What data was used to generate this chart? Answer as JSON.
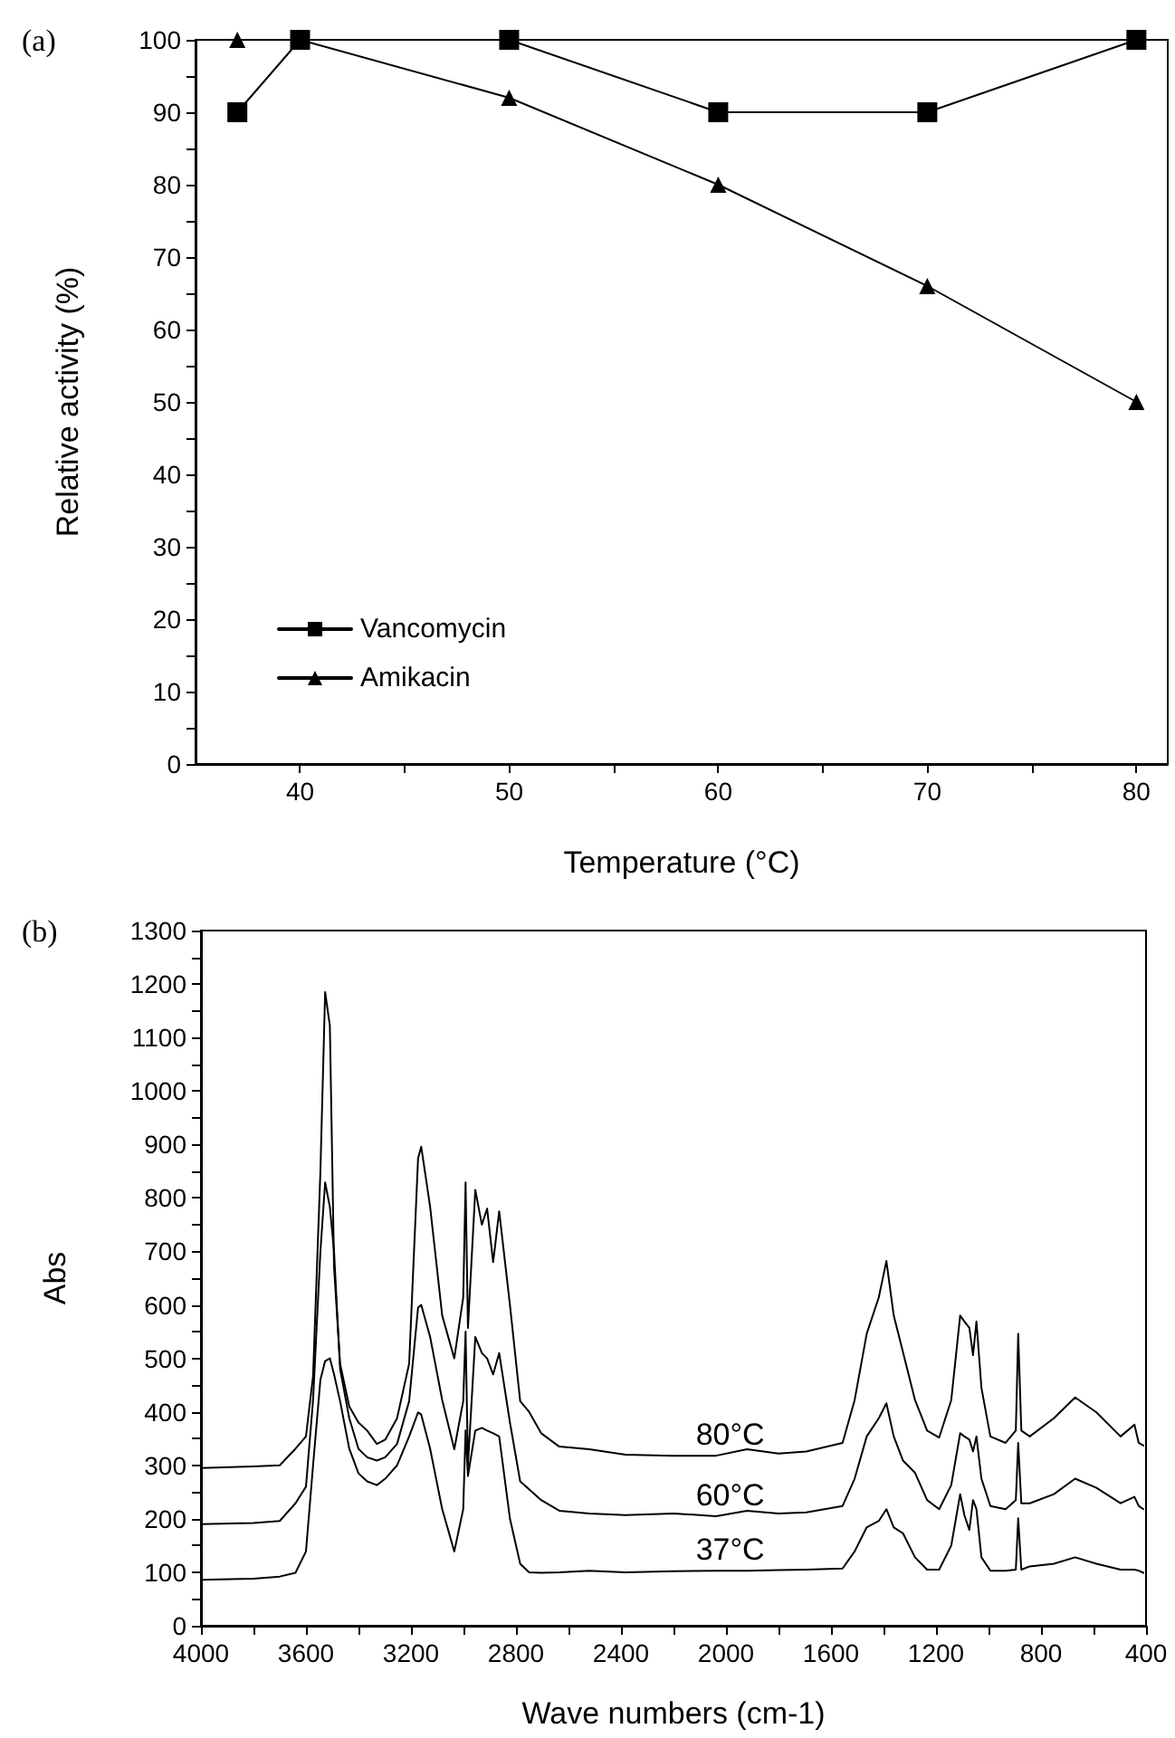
{
  "chart_data": [
    {
      "type": "line",
      "xlabel": "Temperature (°C)",
      "ylabel": "Relative activity (%)",
      "annotations": [
        "(a)"
      ],
      "x": [
        37,
        40,
        50,
        60,
        70,
        80
      ],
      "series": [
        {
          "name": "Vancomycin",
          "color": "#000000",
          "marker": "square",
          "values": [
            90,
            100,
            100,
            90,
            90,
            100
          ]
        },
        {
          "name": "Amikacin",
          "color": "#000000",
          "marker": "triangle",
          "values": [
            100,
            100,
            92,
            80,
            66,
            50
          ]
        }
      ],
      "xlim": [
        35,
        81.5
      ],
      "xticks": [
        40,
        {
          "value": 45,
          "label": null
        },
        50,
        {
          "value": 55,
          "label": null
        },
        60,
        {
          "value": 65,
          "label": null
        },
        70,
        {
          "value": 75,
          "label": null
        },
        80
      ],
      "ylim": [
        0,
        100
      ],
      "yticks": [
        0,
        {
          "value": 5,
          "label": null
        },
        10,
        {
          "value": 15,
          "label": null
        },
        20,
        {
          "value": 25,
          "label": null
        },
        30,
        {
          "value": 35,
          "label": null
        },
        40,
        {
          "value": 45,
          "label": null
        },
        50,
        {
          "value": 55,
          "label": null
        },
        60,
        {
          "value": 65,
          "label": null
        },
        70,
        {
          "value": 75,
          "label": null
        },
        80,
        {
          "value": 85,
          "label": null
        },
        90,
        {
          "value": 95,
          "label": null
        },
        100
      ],
      "legend": "bottom left",
      "line_style": "solid"
    },
    {
      "type": "line",
      "xlabel": "Wave numbers (cm-1)",
      "ylabel": "Abs",
      "marker": "none",
      "line_style": "solid",
      "annotations": [
        "(b)"
      ],
      "x": [
        4000,
        3800,
        3700,
        3640,
        3600,
        3573,
        3545,
        3527,
        3509,
        3493,
        3470,
        3435,
        3400,
        3367,
        3330,
        3298,
        3253,
        3207,
        3173,
        3161,
        3127,
        3081,
        3035,
        3001,
        2992,
        2983,
        2955,
        2930,
        2910,
        2887,
        2864,
        2823,
        2784,
        2750,
        2704,
        2635,
        2521,
        2383,
        2200,
        2038,
        1920,
        1800,
        1694,
        1556,
        1510,
        1464,
        1418,
        1389,
        1361,
        1326,
        1280,
        1234,
        1188,
        1142,
        1108,
        1092,
        1073,
        1059,
        1046,
        1027,
        993,
        935,
        896,
        887,
        875,
        843,
        751,
        670,
        589,
        497,
        444,
        428,
        410
      ],
      "series": [
        {
          "name": "80°C",
          "color": "#000000",
          "values": [
            295,
            298,
            300,
            331,
            354,
            467,
            850,
            1185,
            1122,
            670,
            490,
            410,
            380,
            365,
            340,
            348,
            388,
            490,
            874,
            896,
            783,
            580,
            500,
            614,
            829,
            557,
            815,
            750,
            780,
            680,
            775,
            600,
            420,
            400,
            360,
            335,
            330,
            320,
            318,
            318,
            330,
            322,
            326,
            342,
            422,
            546,
            614,
            682,
            580,
            512,
            422,
            365,
            352,
            422,
            580,
            569,
            557,
            506,
            569,
            445,
            354,
            342,
            365,
            546,
            365,
            354,
            388,
            427,
            399,
            354,
            376,
            342,
            337
          ]
        },
        {
          "name": "60°C",
          "color": "#000000",
          "values": [
            190,
            192,
            196,
            229,
            260,
            422,
            700,
            829,
            783,
            700,
            480,
            388,
            331,
            315,
            309,
            315,
            340,
            420,
            595,
            600,
            540,
            422,
            330,
            420,
            550,
            300,
            540,
            510,
            500,
            470,
            510,
            380,
            270,
            255,
            235,
            215,
            210,
            207,
            210,
            205,
            215,
            210,
            212,
            224,
            275,
            354,
            388,
            416,
            354,
            309,
            286,
            235,
            218,
            263,
            360,
            354,
            348,
            326,
            354,
            275,
            224,
            218,
            235,
            342,
            229,
            229,
            246,
            275,
            258,
            229,
            241,
            224,
            218
          ]
        },
        {
          "name": "37°C",
          "color": "#000000",
          "values": [
            86,
            88,
            92,
            99,
            139,
            300,
            460,
            495,
            500,
            470,
            420,
            331,
            285,
            270,
            263,
            275,
            300,
            354,
            399,
            395,
            331,
            218,
            139,
            218,
            365,
            280,
            365,
            370,
            365,
            360,
            354,
            200,
            116,
            100,
            99,
            100,
            103,
            100,
            102,
            103,
            103,
            104,
            105,
            107,
            139,
            184,
            196,
            218,
            184,
            173,
            128,
            105,
            105,
            150,
            246,
            207,
            179,
            235,
            218,
            128,
            103,
            103,
            105,
            201,
            105,
            111,
            116,
            128,
            116,
            105,
            105,
            103,
            99
          ]
        }
      ],
      "xlim": [
        4000,
        400
      ],
      "xticks": [
        4000,
        {
          "value": 3800,
          "label": null
        },
        3600,
        {
          "value": 3400,
          "label": null
        },
        3200,
        {
          "value": 3000,
          "label": null
        },
        2800,
        {
          "value": 2600,
          "label": null
        },
        2400,
        {
          "value": 2200,
          "label": null
        },
        2000,
        {
          "value": 1800,
          "label": null
        },
        1600,
        {
          "value": 1400,
          "label": null
        },
        1200,
        {
          "value": 1000,
          "label": null
        },
        800,
        {
          "value": 600,
          "label": null
        },
        400
      ],
      "ylim": [
        0,
        1300
      ],
      "yticks": [
        0,
        {
          "value": 50,
          "label": null
        },
        100,
        {
          "value": 150,
          "label": null
        },
        200,
        {
          "value": 250,
          "label": null
        },
        300,
        {
          "value": 350,
          "label": null
        },
        400,
        {
          "value": 450,
          "label": null
        },
        500,
        {
          "value": 550,
          "label": null
        },
        600,
        {
          "value": 650,
          "label": null
        },
        700,
        {
          "value": 750,
          "label": null
        },
        800,
        {
          "value": 850,
          "label": null
        },
        900,
        {
          "value": 950,
          "label": null
        },
        1000,
        {
          "value": 1050,
          "label": null
        },
        1100,
        {
          "value": 1150,
          "label": null
        },
        1200,
        {
          "value": 1250,
          "label": null
        },
        1300
      ]
    }
  ]
}
